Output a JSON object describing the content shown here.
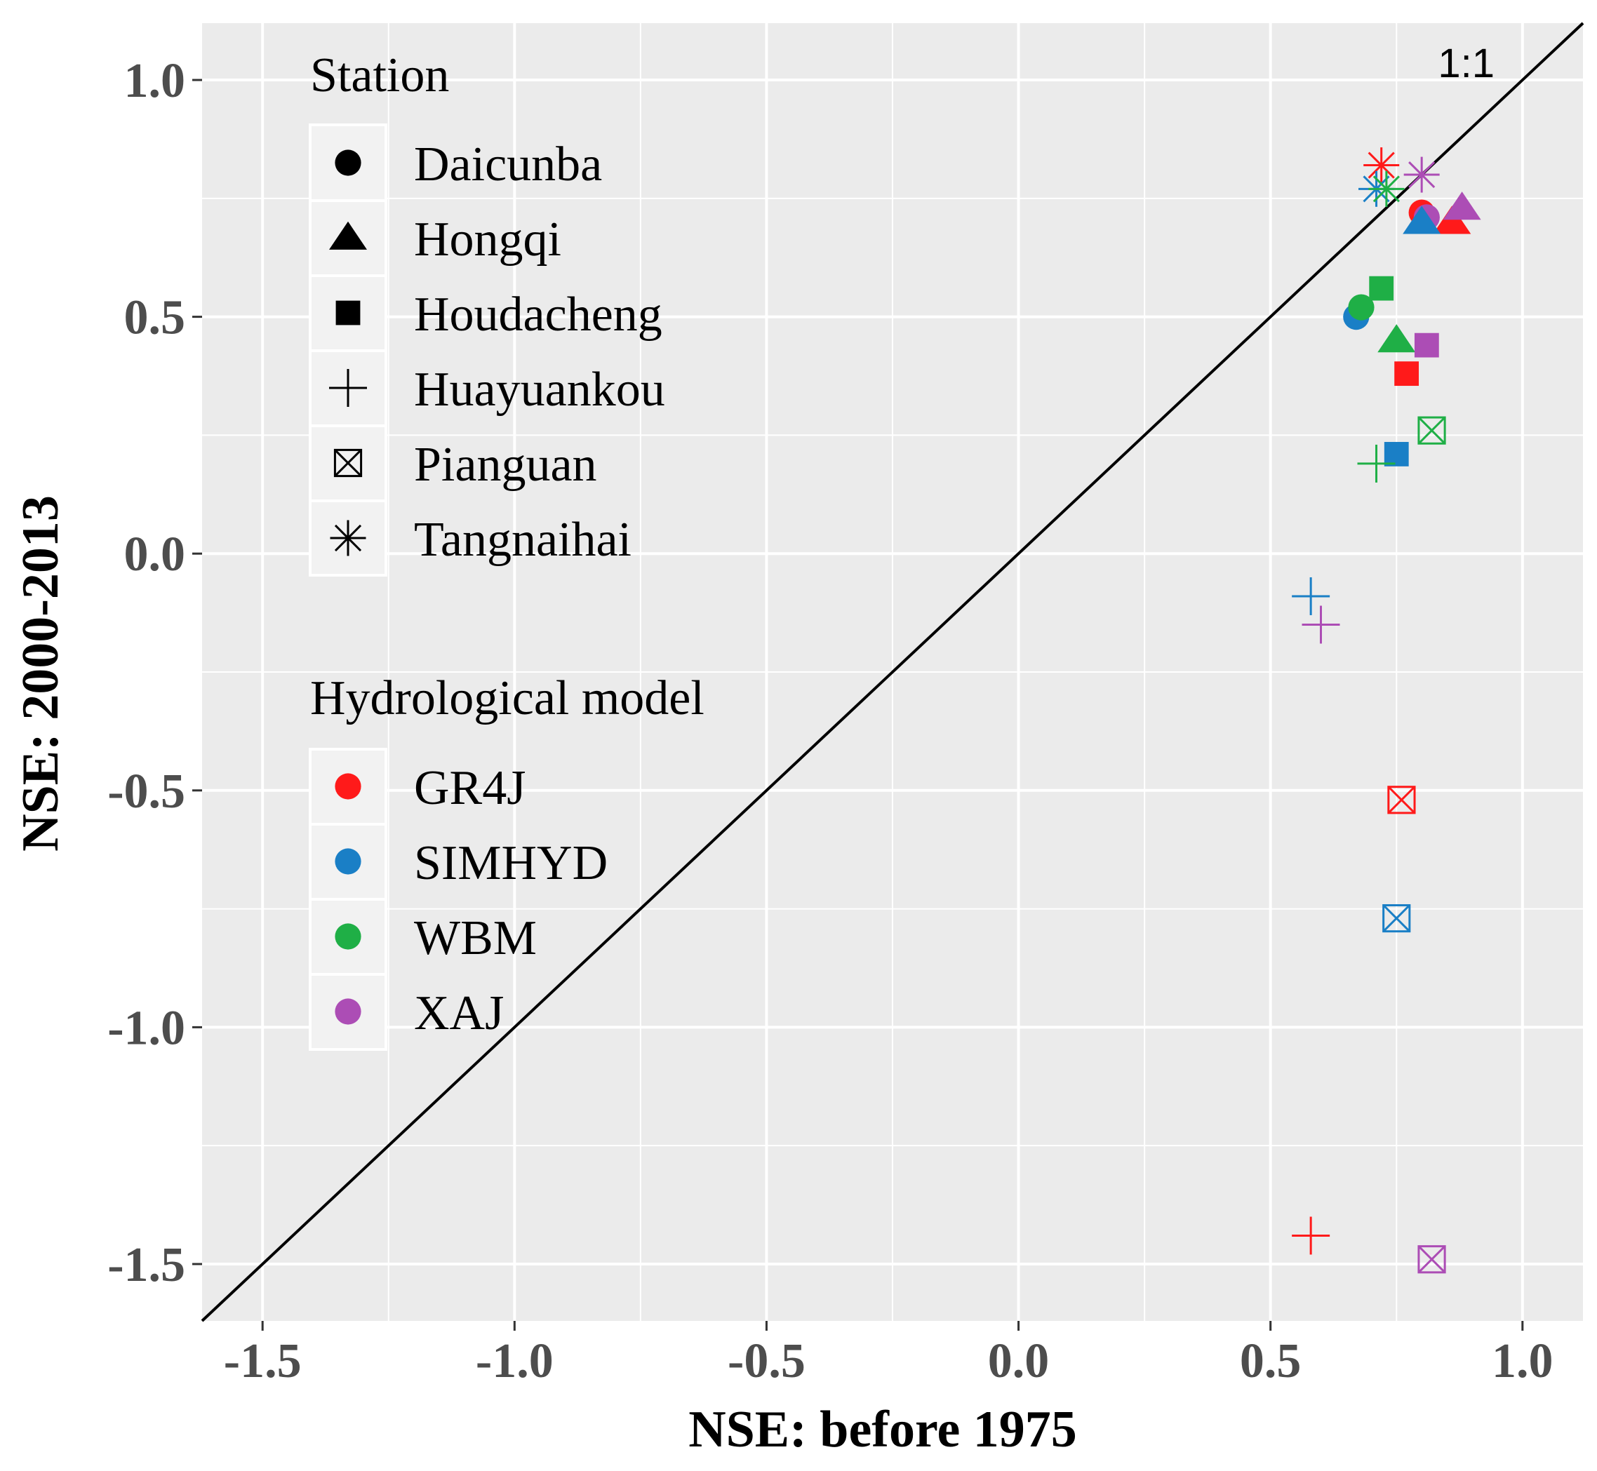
{
  "chart_data": {
    "type": "scatter",
    "xlabel": "NSE: before 1975",
    "ylabel": "NSE: 2000-2013",
    "xlim": [
      -1.62,
      1.12
    ],
    "ylim": [
      -1.62,
      1.12
    ],
    "x_ticks": [
      -1.5,
      -1.0,
      -0.5,
      0.0,
      0.5,
      1.0
    ],
    "y_ticks": [
      -1.5,
      -1.0,
      -0.5,
      0.0,
      0.5,
      1.0
    ],
    "x_tick_labels": [
      "-1.5",
      "-1.0",
      "-0.5",
      "0.0",
      "0.5",
      "1.0"
    ],
    "y_tick_labels": [
      "-1.5",
      "-1.0",
      "-0.5",
      "0.0",
      "0.5",
      "1.0"
    ],
    "grid": true,
    "reference_line": {
      "label": "1:1",
      "slope": 1,
      "intercept": 0
    },
    "legend_station": {
      "title": "Station",
      "items": [
        {
          "label": "Daicunba",
          "shape": "circle"
        },
        {
          "label": "Hongqi",
          "shape": "triangle"
        },
        {
          "label": "Houdacheng",
          "shape": "square"
        },
        {
          "label": "Huayuankou",
          "shape": "plus"
        },
        {
          "label": "Pianguan",
          "shape": "square-cross"
        },
        {
          "label": "Tangnaihai",
          "shape": "asterisk"
        }
      ]
    },
    "legend_model": {
      "title": "Hydrological model",
      "items": [
        {
          "label": "GR4J",
          "color": "#ff1a1a"
        },
        {
          "label": "SIMHYD",
          "color": "#1a7fc6"
        },
        {
          "label": "WBM",
          "color": "#1faf46"
        },
        {
          "label": "XAJ",
          "color": "#ac4db5"
        }
      ]
    },
    "points": [
      {
        "model": "GR4J",
        "station": "Daicunba",
        "x": 0.8,
        "y": 0.72
      },
      {
        "model": "SIMHYD",
        "station": "Daicunba",
        "x": 0.67,
        "y": 0.5
      },
      {
        "model": "WBM",
        "station": "Daicunba",
        "x": 0.68,
        "y": 0.52
      },
      {
        "model": "XAJ",
        "station": "Daicunba",
        "x": 0.81,
        "y": 0.71
      },
      {
        "model": "GR4J",
        "station": "Hongqi",
        "x": 0.86,
        "y": 0.7
      },
      {
        "model": "SIMHYD",
        "station": "Hongqi",
        "x": 0.8,
        "y": 0.7
      },
      {
        "model": "WBM",
        "station": "Hongqi",
        "x": 0.75,
        "y": 0.45
      },
      {
        "model": "XAJ",
        "station": "Hongqi",
        "x": 0.88,
        "y": 0.73
      },
      {
        "model": "GR4J",
        "station": "Houdacheng",
        "x": 0.77,
        "y": 0.38
      },
      {
        "model": "SIMHYD",
        "station": "Houdacheng",
        "x": 0.75,
        "y": 0.21
      },
      {
        "model": "WBM",
        "station": "Houdacheng",
        "x": 0.72,
        "y": 0.56
      },
      {
        "model": "XAJ",
        "station": "Houdacheng",
        "x": 0.81,
        "y": 0.44
      },
      {
        "model": "GR4J",
        "station": "Huayuankou",
        "x": 0.58,
        "y": -1.44
      },
      {
        "model": "SIMHYD",
        "station": "Huayuankou",
        "x": 0.58,
        "y": -0.09
      },
      {
        "model": "WBM",
        "station": "Huayuankou",
        "x": 0.71,
        "y": 0.19
      },
      {
        "model": "XAJ",
        "station": "Huayuankou",
        "x": 0.6,
        "y": -0.15
      },
      {
        "model": "GR4J",
        "station": "Pianguan",
        "x": 0.76,
        "y": -0.52
      },
      {
        "model": "SIMHYD",
        "station": "Pianguan",
        "x": 0.75,
        "y": -0.77
      },
      {
        "model": "WBM",
        "station": "Pianguan",
        "x": 0.82,
        "y": 0.26
      },
      {
        "model": "XAJ",
        "station": "Pianguan",
        "x": 0.82,
        "y": -1.49
      },
      {
        "model": "GR4J",
        "station": "Tangnaihai",
        "x": 0.72,
        "y": 0.82
      },
      {
        "model": "SIMHYD",
        "station": "Tangnaihai",
        "x": 0.71,
        "y": 0.77
      },
      {
        "model": "WBM",
        "station": "Tangnaihai",
        "x": 0.73,
        "y": 0.77
      },
      {
        "model": "XAJ",
        "station": "Tangnaihai",
        "x": 0.8,
        "y": 0.8
      }
    ]
  }
}
